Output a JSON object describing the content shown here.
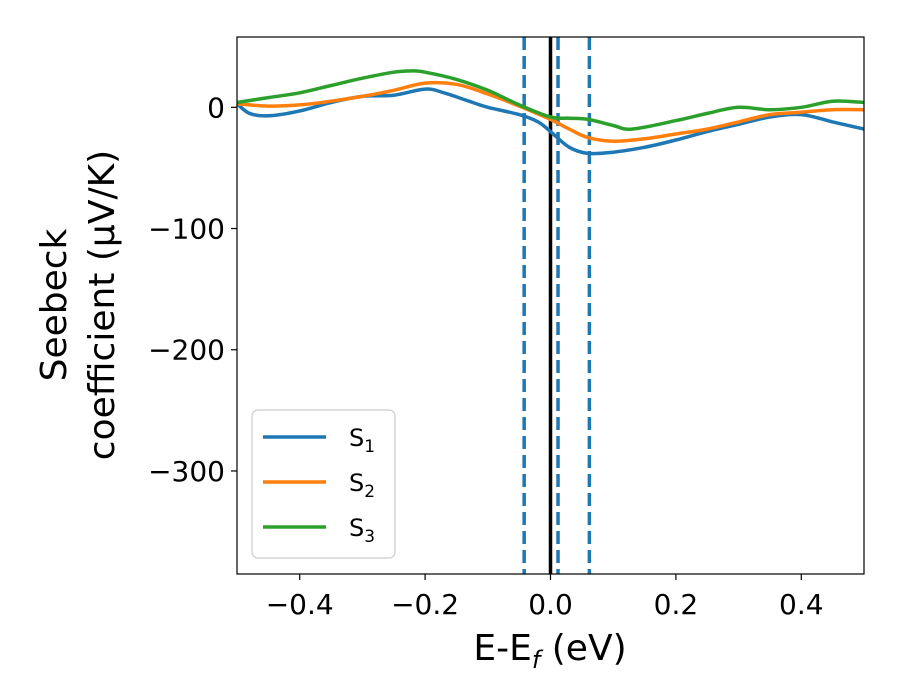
{
  "chart_data": {
    "type": "line",
    "xlabel": {
      "main": "E-E",
      "sub": "f",
      "tail": " (eV)"
    },
    "ylabel": {
      "line1": "Seebeck",
      "line2": "coefficient  (μV/K)"
    },
    "xlim": [
      -0.5,
      0.5
    ],
    "ylim": [
      -385,
      58
    ],
    "xticks": [
      -0.4,
      -0.2,
      0.0,
      0.2,
      0.4
    ],
    "xtick_labels": [
      "−0.4",
      "−0.2",
      "0.0",
      "0.2",
      "0.4"
    ],
    "yticks": [
      0,
      -100,
      -200,
      -300
    ],
    "ytick_labels": [
      "0",
      "−100",
      "−200",
      "−300"
    ],
    "grid": false,
    "legend_position": "lower-left",
    "vlines_solid": [
      {
        "x": 0.0,
        "color": "#000000"
      }
    ],
    "vlines_dashed": [
      {
        "x": -0.042,
        "color": "#1f77b4"
      },
      {
        "x": 0.012,
        "color": "#1f77b4"
      },
      {
        "x": 0.062,
        "color": "#1f77b4"
      }
    ],
    "series": [
      {
        "name": "S",
        "sub": "1",
        "color": "#1f77b4",
        "x": [
          -0.5,
          -0.48,
          -0.45,
          -0.4,
          -0.35,
          -0.3,
          -0.25,
          -0.2,
          -0.17,
          -0.13,
          -0.1,
          -0.05,
          -0.02,
          0.0,
          0.03,
          0.06,
          0.1,
          0.15,
          0.2,
          0.25,
          0.3,
          0.35,
          0.4,
          0.45,
          0.5
        ],
        "y": [
          3,
          -5,
          -7,
          -3,
          4,
          9,
          10,
          15,
          12,
          5,
          0,
          -6,
          -12,
          -20,
          -33,
          -38,
          -37,
          -33,
          -27,
          -20,
          -14,
          -8,
          -6,
          -12,
          -18
        ]
      },
      {
        "name": "S",
        "sub": "2",
        "color": "#ff7f0e",
        "x": [
          -0.5,
          -0.45,
          -0.4,
          -0.35,
          -0.3,
          -0.25,
          -0.2,
          -0.15,
          -0.1,
          -0.05,
          0.0,
          0.03,
          0.06,
          0.1,
          0.15,
          0.2,
          0.25,
          0.3,
          0.35,
          0.4,
          0.45,
          0.5
        ],
        "y": [
          3,
          1,
          2,
          5,
          9,
          14,
          20,
          19,
          11,
          1,
          -10,
          -18,
          -25,
          -28,
          -26,
          -22,
          -18,
          -12,
          -6,
          -4,
          -2,
          -2
        ]
      },
      {
        "name": "S",
        "sub": "3",
        "color": "#2ca02c",
        "x": [
          -0.5,
          -0.45,
          -0.4,
          -0.35,
          -0.3,
          -0.25,
          -0.22,
          -0.2,
          -0.15,
          -0.1,
          -0.05,
          0.0,
          0.03,
          0.06,
          0.1,
          0.13,
          0.2,
          0.25,
          0.3,
          0.35,
          0.4,
          0.45,
          0.5
        ],
        "y": [
          4,
          8,
          12,
          18,
          24,
          29,
          30,
          29,
          23,
          14,
          2,
          -8,
          -9,
          -10,
          -15,
          -18,
          -11,
          -5,
          0,
          -2,
          0,
          5,
          4
        ]
      }
    ]
  }
}
